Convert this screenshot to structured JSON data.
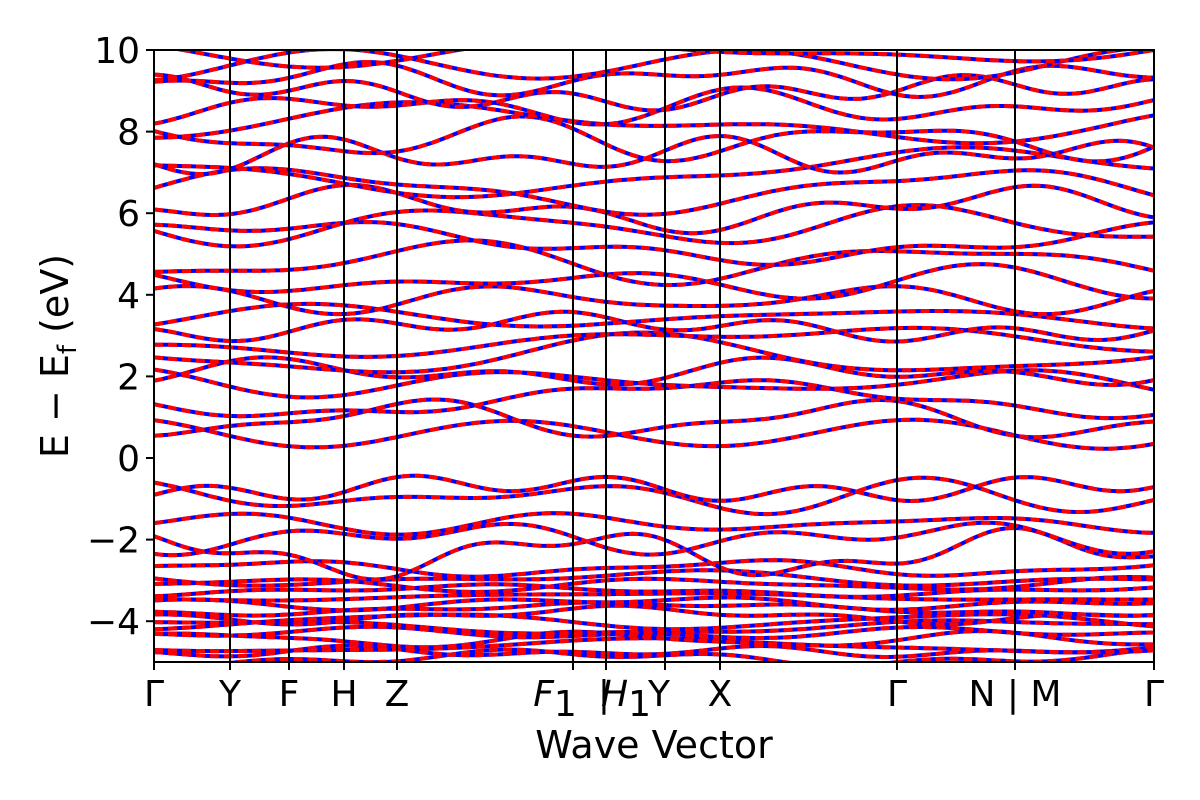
{
  "chart_data": {
    "type": "line",
    "title": "",
    "xlabel": "Wave Vector",
    "ylabel": "E − E",
    "ylabel_sub": "f",
    "ylabel_unit": " (eV)",
    "ylim": [
      -5,
      10
    ],
    "yticks": [
      {
        "value": -4,
        "label": "−4"
      },
      {
        "value": -2,
        "label": "−2"
      },
      {
        "value": 0,
        "label": "0"
      },
      {
        "value": 2,
        "label": "2"
      },
      {
        "value": 4,
        "label": "4"
      },
      {
        "value": 6,
        "label": "6"
      },
      {
        "value": 8,
        "label": "8"
      },
      {
        "value": 10,
        "label": "10"
      }
    ],
    "xlim": [
      0,
      1
    ],
    "kpath": [
      {
        "pos": 0.0,
        "label": "Γ"
      },
      {
        "pos": 0.076,
        "label": "Y"
      },
      {
        "pos": 0.135,
        "label": "F"
      },
      {
        "pos": 0.19,
        "label": "H"
      },
      {
        "pos": 0.243,
        "label": "Z"
      },
      {
        "pos": 0.419,
        "label": "F",
        "sub": "1"
      },
      {
        "pos": 0.452,
        "label": "|"
      },
      {
        "pos": 0.452,
        "label": "H",
        "sub": "1"
      },
      {
        "pos": 0.511,
        "label": "Y"
      },
      {
        "pos": 0.566,
        "label": "X"
      },
      {
        "pos": 0.743,
        "label": "Γ"
      },
      {
        "pos": 0.861,
        "label": "N | M"
      },
      {
        "pos": 1.0,
        "label": "Γ"
      }
    ],
    "series": [
      {
        "color": "#0000ff",
        "style": "solid"
      },
      {
        "color": "#ff0000",
        "style": "dashed"
      }
    ],
    "band_anchor_energies_eV": [
      -4.9,
      -4.75,
      -4.6,
      -4.45,
      -4.3,
      -4.15,
      -4.0,
      -3.85,
      -3.7,
      -3.55,
      -3.4,
      -3.25,
      -3.1,
      -2.95,
      -2.7,
      -2.35,
      -1.95,
      -1.6,
      -0.95,
      -0.75,
      0.6,
      0.95,
      1.45,
      1.85,
      2.1,
      2.5,
      2.85,
      3.2,
      3.45,
      3.9,
      4.3,
      4.8,
      5.3,
      5.7,
      6.1,
      6.55,
      7.0,
      7.4,
      7.8,
      8.2,
      8.6,
      8.95,
      9.3,
      9.65,
      9.95
    ],
    "grid": false
  }
}
